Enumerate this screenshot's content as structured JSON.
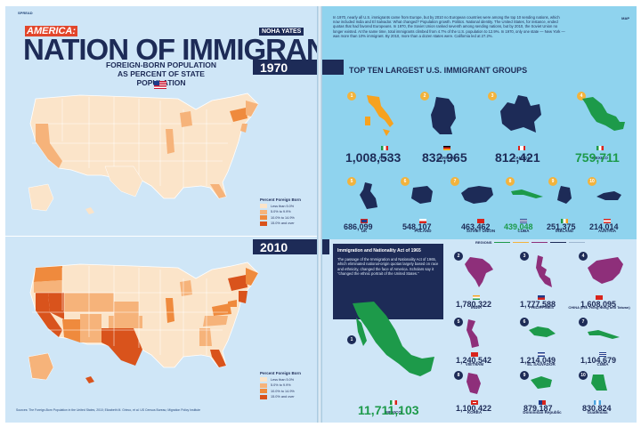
{
  "left_page": {
    "running_head": "SPREAD",
    "kicker": "AMERICA:",
    "title": "NATION OF IMMIGRANTS",
    "author": "NOHA YATES",
    "subtitle_line1": "FOREIGN-BORN POPULATION",
    "subtitle_line2": "AS PERCENT OF STATE POPULATION",
    "year_1970": "1970",
    "year_2010": "2010",
    "legend": {
      "title": "Percent Foreign Born",
      "items": [
        {
          "label": "Less than 5.0%",
          "color": "#fbe4c9"
        },
        {
          "label": "5.0% to 9.9%",
          "color": "#f6b37a"
        },
        {
          "label": "10.0% to 14.9%",
          "color": "#ef8a3d"
        },
        {
          "label": "15.0% and over",
          "color": "#d9531c"
        }
      ]
    },
    "sources": "Sources: The Foreign-Born Population in the United States, 2010; Elizabeth M. Grieco, et al. US Census Bureau; Migration Policy Institute"
  },
  "right_page": {
    "running_head": "MAP",
    "intro": "In 1970, nearly all U.S. immigrants came from Europe, but by 2010 no European countries were among the top 10 sending nations, which now included India and El Salvador. What changed? Population growth. Politics. National identity. The United States, for instance, ended quotas that had favored Europeans. In 1970, the Soviet Union ranked seventh among sending nations, but by 2010, the Soviet Union no longer existed. At the same time, total immigrants climbed from 4.7% of the U.S. population to 12.9%. In 1970, only one state — New York — was more than 10% immigrant. By 2010, more than a dozen states were. California led at 27.2%.",
    "top10_title": "TOP TEN LARGEST U.S. IMMIGRANT GROUPS",
    "groups_1970": [
      {
        "rank": "1",
        "name": "ITALY",
        "value": "1,008,533",
        "color": "#1d2b57"
      },
      {
        "rank": "2",
        "name": "GERMANY",
        "value": "832,965",
        "color": "#1d2b57"
      },
      {
        "rank": "3",
        "name": "CANADA",
        "value": "812,421",
        "color": "#1d2b57"
      },
      {
        "rank": "4",
        "name": "MEXICO",
        "value": "759,711",
        "color": "#1d9a4a"
      },
      {
        "rank": "5",
        "name": "UK",
        "value": "686,099",
        "color": "#1d2b57"
      },
      {
        "rank": "6",
        "name": "POLAND",
        "value": "548,107",
        "color": "#1d2b57"
      },
      {
        "rank": "7",
        "name": "SOVIET UNION",
        "value": "463,462",
        "color": "#1d2b57"
      },
      {
        "rank": "8",
        "name": "CUBA",
        "value": "439,048",
        "color": "#1d9a4a"
      },
      {
        "rank": "9",
        "name": "IRELAND",
        "value": "251,375",
        "color": "#1d2b57"
      },
      {
        "rank": "10",
        "name": "AUSTRIA",
        "value": "214,014",
        "color": "#1d2b57"
      }
    ],
    "act": {
      "title": "Immigration and Nationality Act of 1965",
      "body": "The passage of the Immigration and Nationality Act of 1965, which eliminated national-origin quotas largely based on race and ethnicity, changed the face of America. Scholars say it \"changed the ethnic portrait of the United States.\""
    },
    "regions_label": "REGIONS",
    "groups_2010": [
      {
        "rank": "1",
        "name": "MEXICO",
        "value": "11,711,103"
      },
      {
        "rank": "2",
        "name": "INDIA",
        "value": "1,780,322"
      },
      {
        "rank": "3",
        "name": "PHILIPPINES",
        "value": "1,777,588"
      },
      {
        "rank": "4",
        "name": "CHINA (exc. Hong Kong and Taiwan)",
        "value": "1,608,095"
      },
      {
        "rank": "5",
        "name": "VIETNAM",
        "value": "1,240,542"
      },
      {
        "rank": "6",
        "name": "EL SALVADOR",
        "value": "1,214,049"
      },
      {
        "rank": "7",
        "name": "CUBA",
        "value": "1,104,679"
      },
      {
        "rank": "8",
        "name": "KOREA",
        "value": "1,100,422"
      },
      {
        "rank": "9",
        "name": "Dominican Republic",
        "value": "879,187"
      },
      {
        "rank": "10",
        "name": "Guatemala",
        "value": "830,824"
      }
    ]
  }
}
